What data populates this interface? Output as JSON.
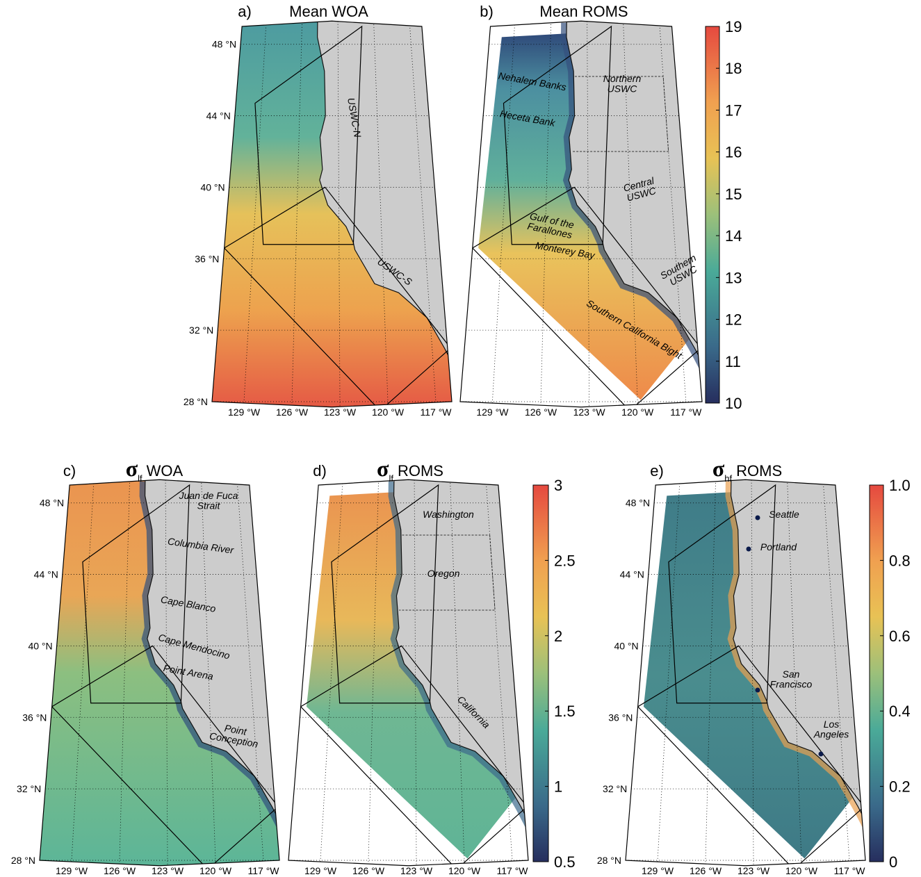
{
  "figure": {
    "panels": [
      {
        "label": "a)",
        "title": {
          "text": "Mean WOA"
        },
        "lat_labels": [
          "48 °N",
          "44 °N",
          "40 °N",
          "36 °N",
          "32 °N",
          "28 °N"
        ],
        "lon_labels": [
          "129 °W",
          "126 °W",
          "123 °W",
          "120 °W",
          "117 °W"
        ],
        "annotations": [
          [
            "USWC-N"
          ],
          [
            "USWC-S"
          ]
        ]
      },
      {
        "label": "b)",
        "title": {
          "text": "Mean ROMS"
        },
        "lon_labels": [
          "129 °W",
          "126 °W",
          "123 °W",
          "120 °W",
          "117 °W"
        ],
        "annotations": [
          [
            "Nehalem Banks"
          ],
          [
            "Heceta Bank"
          ],
          [
            "Northern",
            "USWC"
          ],
          [
            "Central",
            "USWC"
          ],
          [
            "Gulf of the",
            "Farallones"
          ],
          [
            "Monterey Bay"
          ],
          [
            "Southern",
            "USWC"
          ],
          [
            "Southern California Bight"
          ]
        ]
      },
      {
        "label": "c)",
        "title": {
          "symbol": "σ",
          "sub": "lf",
          "text": "WOA"
        },
        "lat_labels": [
          "48 °N",
          "44 °N",
          "40 °N",
          "36 °N",
          "32 °N",
          "28 °N"
        ],
        "lon_labels": [
          "129 °W",
          "126 °W",
          "123 °W",
          "120 °W",
          "117 °W"
        ],
        "annotations": [
          [
            "Juan de Fuca",
            "Strait"
          ],
          [
            "Columbia River"
          ],
          [
            "Cape Blanco"
          ],
          [
            "Cape Mendocino"
          ],
          [
            "Point Arena"
          ],
          [
            "Point",
            "Conception"
          ]
        ]
      },
      {
        "label": "d)",
        "title": {
          "symbol": "σ",
          "sub": "lf",
          "text": "ROMS"
        },
        "lon_labels": [
          "129 °W",
          "126 °W",
          "123 °W",
          "120 °W",
          "117 °W"
        ],
        "annotations": [
          [
            "Washington"
          ],
          [
            "Oregon"
          ],
          [
            "California"
          ]
        ]
      },
      {
        "label": "e)",
        "title": {
          "symbol": "σ",
          "sub": "hf",
          "text": "ROMS"
        },
        "lat_labels": [
          "48 °N",
          "44 °N",
          "40 °N",
          "36 °N",
          "32 °N",
          "28 °N"
        ],
        "lon_labels": [
          "129 °W",
          "126 °W",
          "123 °W",
          "120 °W",
          "117 °W"
        ],
        "annotations": [
          [
            "Seattle"
          ],
          [
            "Portland"
          ],
          [
            "San",
            "Francisco"
          ],
          [
            "Los",
            "Angeles"
          ]
        ]
      }
    ],
    "colorbars": [
      {
        "ticks": [
          "19",
          "18",
          "17",
          "16",
          "15",
          "14",
          "13",
          "12",
          "11",
          "10"
        ]
      },
      {
        "ticks": [
          "3",
          "2.5",
          "2",
          "1.5",
          "1",
          "0.5"
        ]
      },
      {
        "ticks": [
          "1.0",
          "0.8",
          "0.6",
          "0.4",
          "0.2",
          "0"
        ]
      }
    ]
  }
}
